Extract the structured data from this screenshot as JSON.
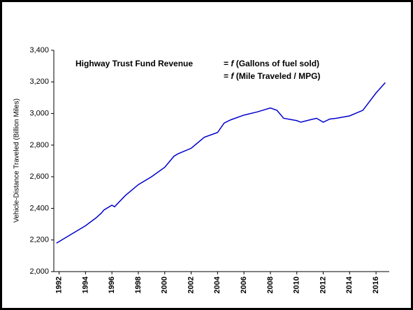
{
  "chart_data": {
    "type": "line",
    "y_label": "Vehicle-Distance Traveled (Billion Miles)",
    "annotations": [
      {
        "text": "Highway Trust Fund Revenue"
      },
      {
        "prefix": "=",
        "func": "f",
        "text": "(Gallons of fuel sold)"
      },
      {
        "prefix": "=",
        "func": "f",
        "text": "(Mile Traveled / MPG)"
      }
    ],
    "x": [
      1991.8,
      1992,
      1993,
      1994,
      1994.8,
      1995.2,
      1995.4,
      1996,
      1996.2,
      1997,
      1998,
      1999,
      2000,
      2000.7,
      2001,
      2002,
      2003,
      2004,
      2004.5,
      2005,
      2006,
      2007,
      2008,
      2008.5,
      2009,
      2010,
      2010.3,
      2011,
      2011.5,
      2012,
      2012.5,
      2013,
      2014,
      2015,
      2016,
      2016.7
    ],
    "series": [
      {
        "color": "#0000cc",
        "values": [
          2180,
          2190,
          2240,
          2290,
          2340,
          2370,
          2390,
          2420,
          2410,
          2480,
          2550,
          2600,
          2660,
          2730,
          2745,
          2780,
          2850,
          2880,
          2940,
          2960,
          2990,
          3010,
          3035,
          3020,
          2970,
          2955,
          2945,
          2960,
          2970,
          2945,
          2965,
          2970,
          2985,
          3020,
          3130,
          3195
        ]
      }
    ],
    "xlim": [
      1991.6,
      2017.0
    ],
    "xticks": [
      1992,
      1994,
      1996,
      1998,
      2000,
      2002,
      2004,
      2006,
      2008,
      2010,
      2012,
      2014,
      2016
    ],
    "ylim": [
      2000,
      3400
    ],
    "yticks": [
      {
        "value": 2000,
        "label": "2,000"
      },
      {
        "value": 2200,
        "label": "2,200"
      },
      {
        "value": 2400,
        "label": "2,400"
      },
      {
        "value": 2600,
        "label": "2,600"
      },
      {
        "value": 2800,
        "label": "2,800"
      },
      {
        "value": 3000,
        "label": "3,000"
      },
      {
        "value": 3200,
        "label": "3,200"
      },
      {
        "value": 3400,
        "label": "3,400"
      }
    ]
  }
}
